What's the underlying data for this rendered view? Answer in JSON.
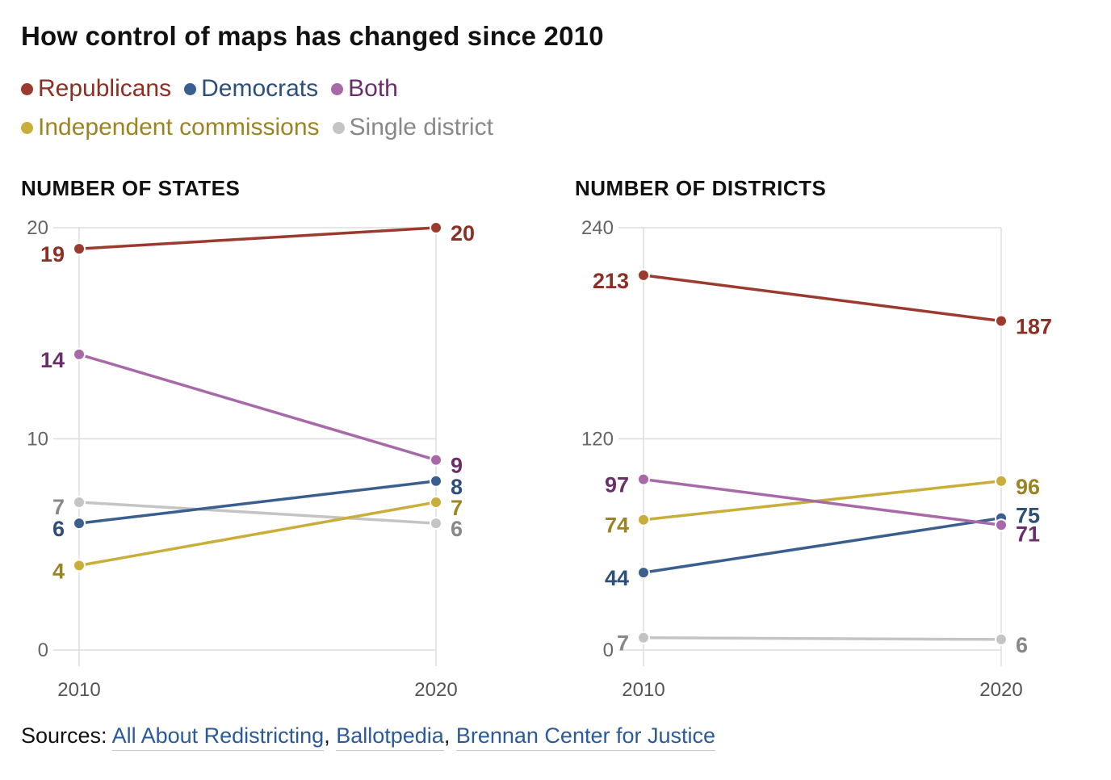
{
  "title": "How control of maps has changed since 2010",
  "legend": [
    {
      "label": "Republicans",
      "color": "#9b3a2f",
      "text_color": "#8a3025"
    },
    {
      "label": "Democrats",
      "color": "#3a5f8f",
      "text_color": "#2e4f7a"
    },
    {
      "label": "Both",
      "color": "#a869a8",
      "text_color": "#6a2f6a"
    },
    {
      "label": "Independent commissions",
      "color": "#c9ae3c",
      "text_color": "#9a8424"
    },
    {
      "label": "Single district",
      "color": "#c4c4c4",
      "text_color": "#888888"
    }
  ],
  "chart_data": [
    {
      "type": "line",
      "title": "NUMBER OF STATES",
      "x": [
        "2010",
        "2020"
      ],
      "ylim": [
        0,
        20
      ],
      "yticks": [
        "0",
        "10",
        "20"
      ],
      "grid": true,
      "series": [
        {
          "name": "Republicans",
          "values": [
            19,
            20
          ],
          "labels": [
            "19",
            "20"
          ]
        },
        {
          "name": "Democrats",
          "values": [
            6,
            8
          ],
          "labels": [
            "6",
            "8"
          ]
        },
        {
          "name": "Both",
          "values": [
            14,
            9
          ],
          "labels": [
            "14",
            "9"
          ]
        },
        {
          "name": "Independent commissions",
          "values": [
            4,
            7
          ],
          "labels": [
            "4",
            "7"
          ]
        },
        {
          "name": "Single district",
          "values": [
            7,
            6
          ],
          "labels": [
            "7",
            "6"
          ]
        }
      ]
    },
    {
      "type": "line",
      "title": "NUMBER OF DISTRICTS",
      "x": [
        "2010",
        "2020"
      ],
      "ylim": [
        0,
        240
      ],
      "yticks": [
        "0",
        "120",
        "240"
      ],
      "grid": true,
      "series": [
        {
          "name": "Republicans",
          "values": [
            213,
            187
          ],
          "labels": [
            "213",
            "187"
          ]
        },
        {
          "name": "Democrats",
          "values": [
            44,
            75
          ],
          "labels": [
            "44",
            "75"
          ]
        },
        {
          "name": "Both",
          "values": [
            97,
            71
          ],
          "labels": [
            "97",
            "71"
          ]
        },
        {
          "name": "Independent commissions",
          "values": [
            74,
            96
          ],
          "labels": [
            "74",
            "96"
          ]
        },
        {
          "name": "Single district",
          "values": [
            7,
            6
          ],
          "labels": [
            "7",
            "6"
          ]
        }
      ]
    }
  ],
  "sources": {
    "prefix": "Sources: ",
    "links": [
      "All About Redistricting",
      "Ballotpedia",
      "Brennan Center for Justice"
    ],
    "separator": ", "
  }
}
